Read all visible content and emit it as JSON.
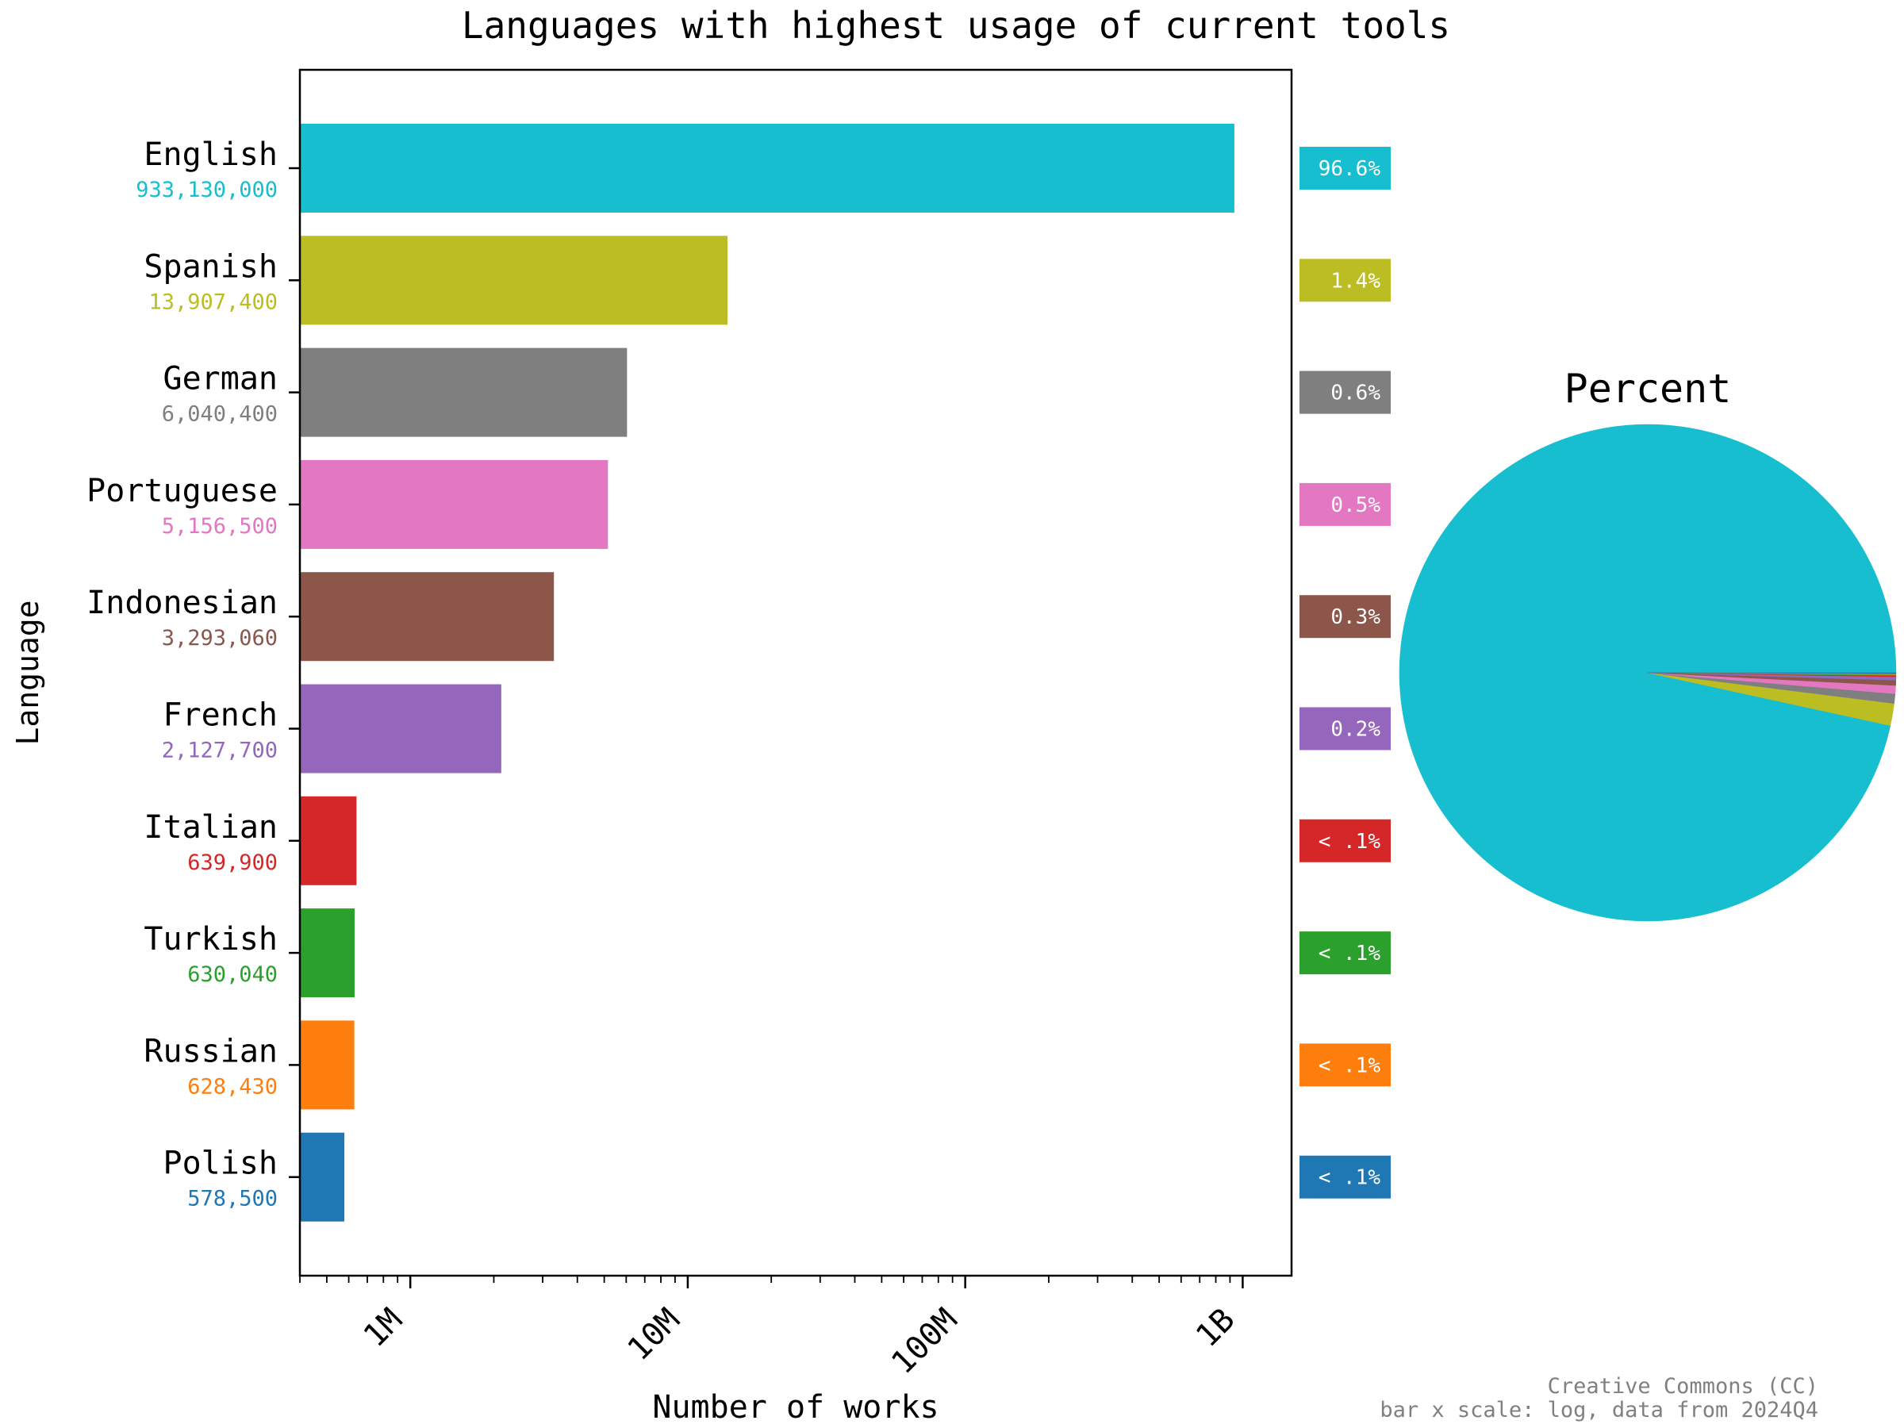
{
  "chart_data": {
    "type": "bar",
    "orientation": "horizontal",
    "title": "Languages with highest usage of current tools",
    "xlabel": "Number of works",
    "ylabel": "Language",
    "x_scale": "log",
    "xlim": [
      400000,
      1500000000
    ],
    "x_ticks": [
      {
        "value": 1000000,
        "label": "1M"
      },
      {
        "value": 10000000,
        "label": "10M"
      },
      {
        "value": 100000000,
        "label": "100M"
      },
      {
        "value": 1000000000,
        "label": "1B"
      }
    ],
    "categories": [
      "English",
      "Spanish",
      "German",
      "Portuguese",
      "Indonesian",
      "French",
      "Italian",
      "Turkish",
      "Russian",
      "Polish"
    ],
    "values": [
      933130000,
      13907400,
      6040400,
      5156500,
      3293060,
      2127700,
      639900,
      630040,
      628430,
      578500
    ],
    "value_labels": [
      "933,130,000",
      "13,907,400",
      "6,040,400",
      "5,156,500",
      "3,293,060",
      "2,127,700",
      "639,900",
      "630,040",
      "628,430",
      "578,500"
    ],
    "percent_labels": [
      "96.6%",
      "1.4%",
      "0.6%",
      "0.5%",
      "0.3%",
      "0.2%",
      "< .1%",
      "< .1%",
      "< .1%",
      "< .1%"
    ],
    "colors": [
      "#17becf",
      "#bcbd22",
      "#7f7f7f",
      "#e377c2",
      "#8c564b",
      "#9467bd",
      "#d62728",
      "#2ca02c",
      "#ff7f0e",
      "#1f77b4"
    ],
    "pie": {
      "title": "Percent",
      "note": "slices follow the same categories, values and colors as the bars"
    },
    "footnote": [
      "Creative Commons (CC)",
      "bar x scale: log, data from 2024Q4"
    ],
    "grid": false,
    "legend": "none"
  }
}
